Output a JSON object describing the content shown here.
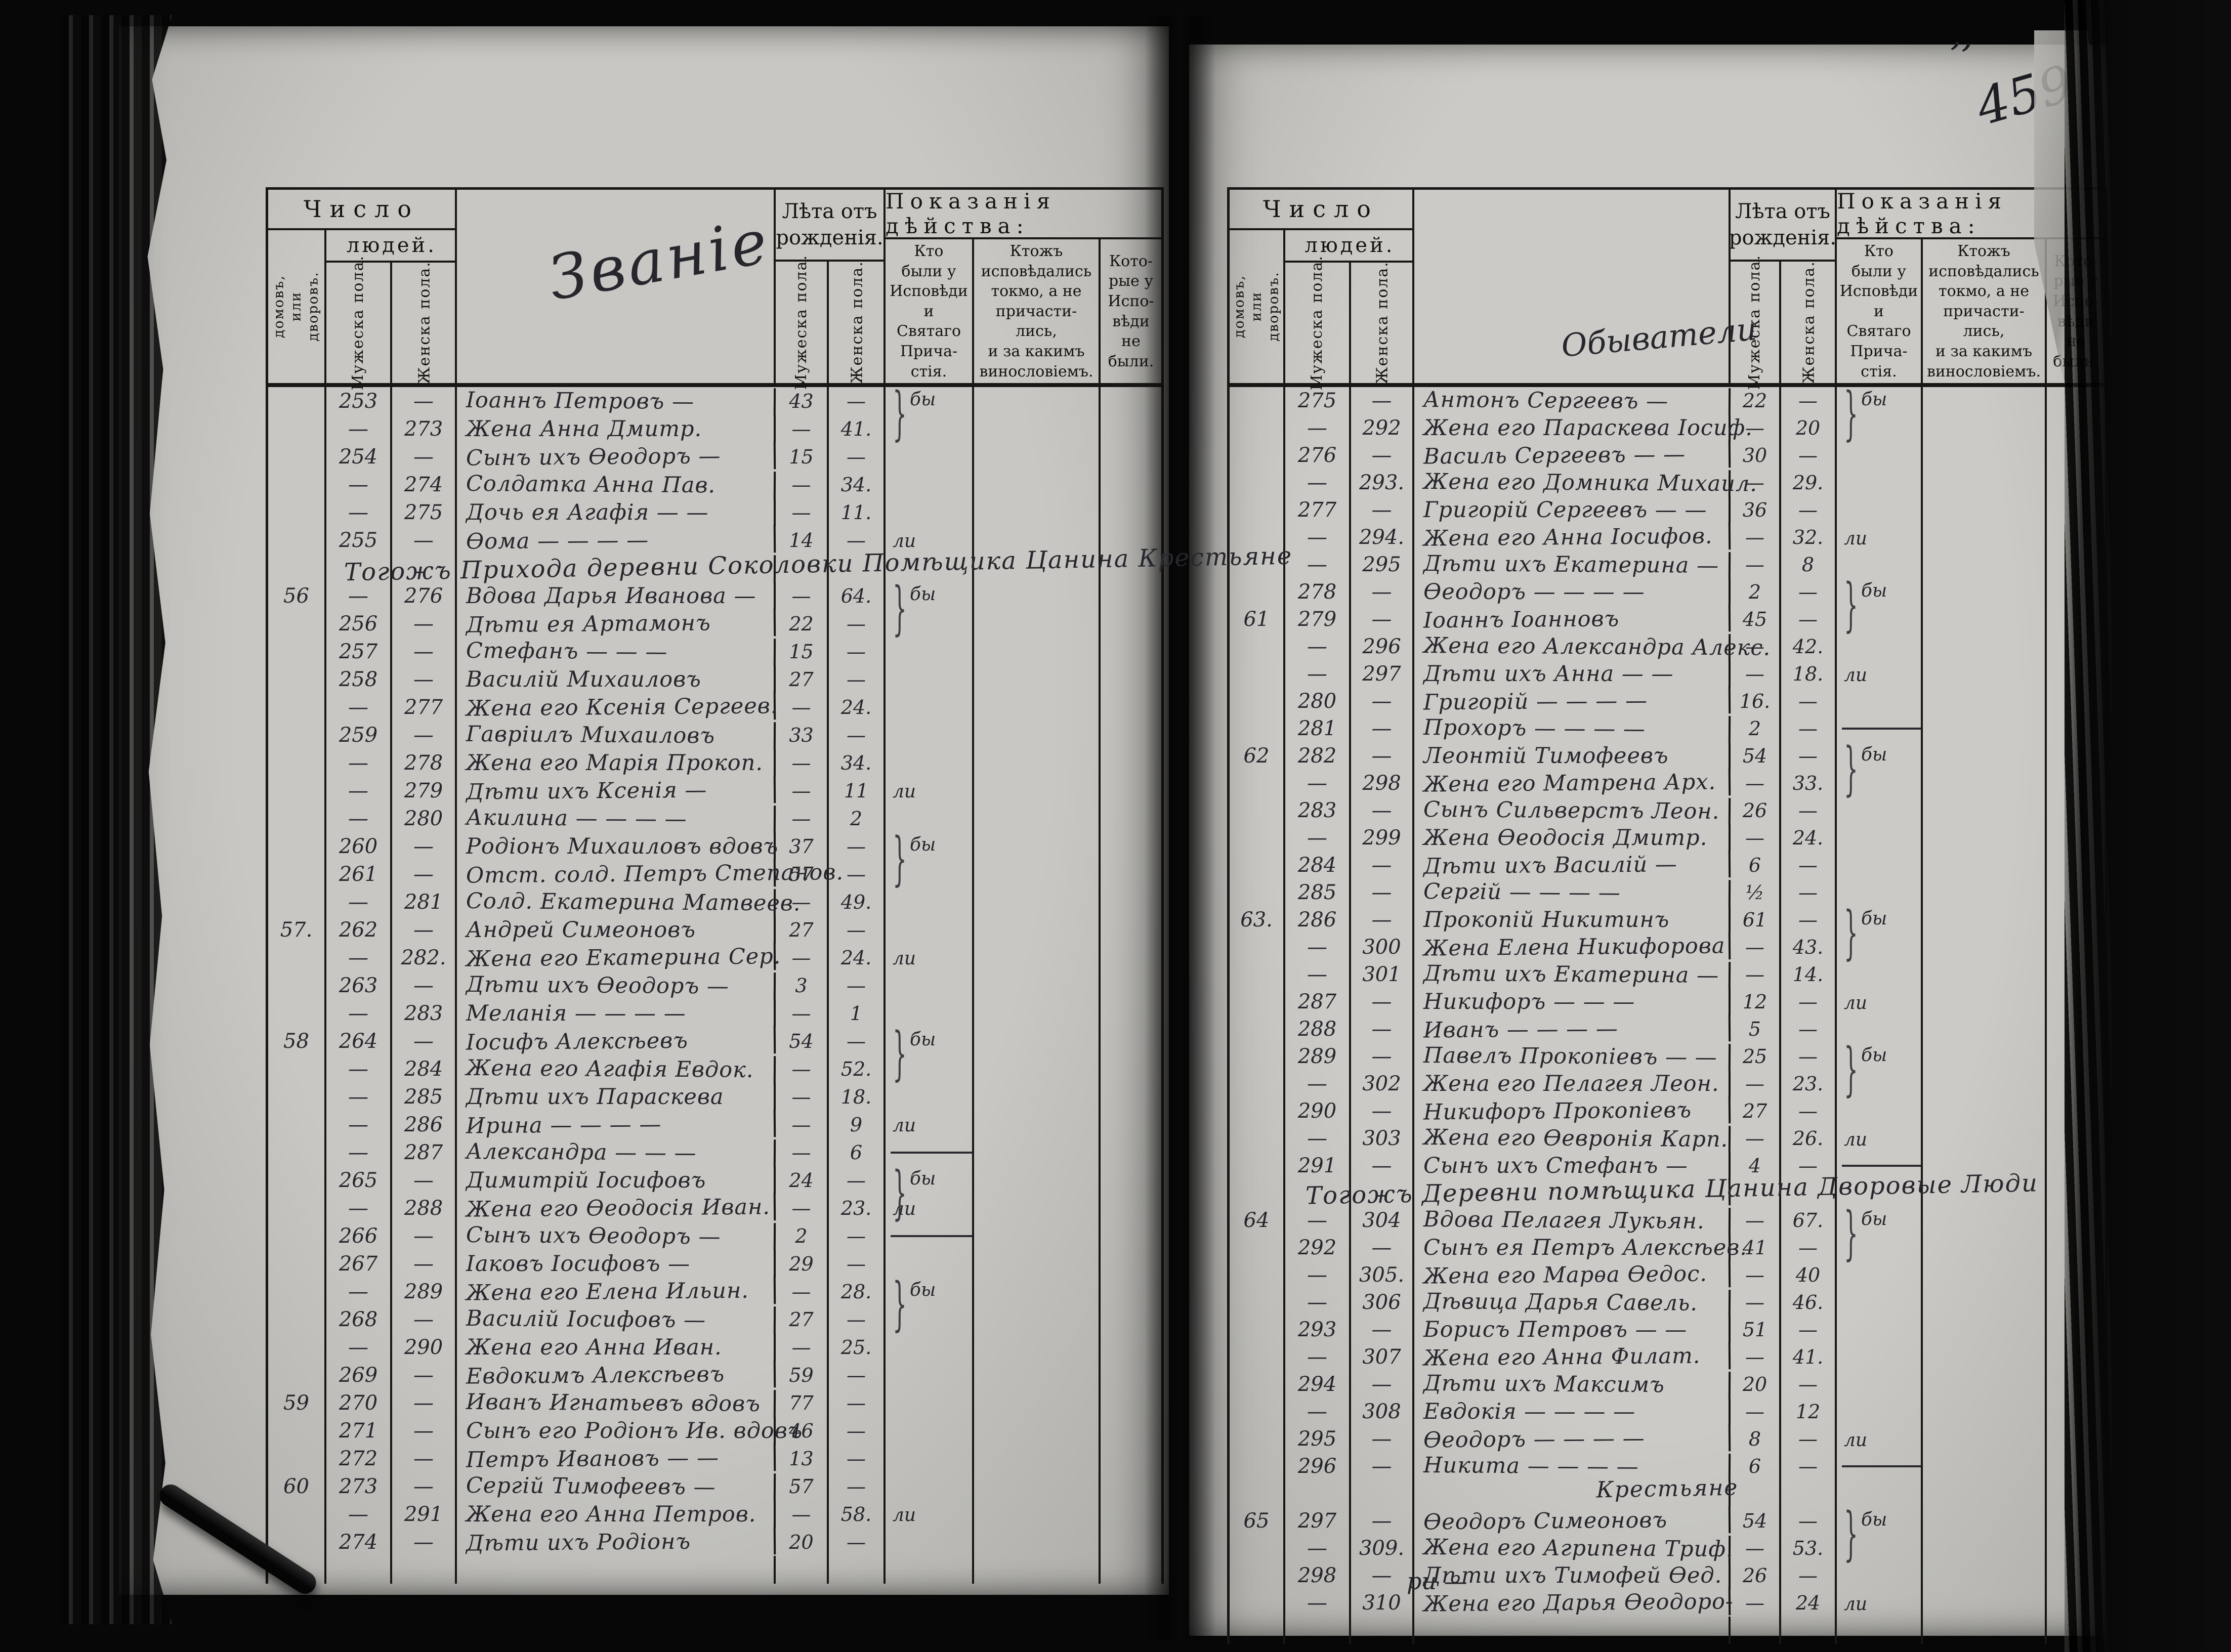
{
  "page_number": "459",
  "corner_marks": "’’",
  "header": {
    "chislo": "Число",
    "lyudey": "людей.",
    "domov": "домовъ,\nили\nдворовъ.",
    "muzheska": "Мужеска пола.",
    "zhenska": "Женска пола.",
    "leta": "Лѣта отъ\nрожденія.",
    "pokazaniya": "Показанія дѣйства:",
    "col_confessed": "Кто\nбыли у\nИсповѣди\nи\nСвятаго\nПрича-\nстія.",
    "col_confessed_only": "Ктожъ\nисповѣдались\nтокмо, а не\nпричасти-\nлись,\nи за какимъ\nвинословіемъ.",
    "col_absent": "Кото-\nрые у\nИспо-\nвѣди\nне\nбыли."
  },
  "ink_color": "#27262c",
  "page_color": "#c8c7c3",
  "left_page": {
    "names_heading": "Званіе",
    "rows": [
      {
        "mn": "253",
        "fn": "—",
        "name": "Іоаннъ Петровъ —",
        "ma": "43",
        "fa": "—",
        "mark": "бы"
      },
      {
        "mn": "—",
        "fn": "273",
        "name": "Жена Анна Дмитр.",
        "ma": "—",
        "fa": "41."
      },
      {
        "mn": "254",
        "fn": "—",
        "name": "Сынъ ихъ Ѳеодоръ —",
        "ma": "15",
        "fa": "—"
      },
      {
        "mn": "—",
        "fn": "274",
        "name": "Солдатка Анна Пав.",
        "ma": "—",
        "fa": "34."
      },
      {
        "mn": "—",
        "fn": "275",
        "name": "Дочь ея Агафія — —",
        "ma": "—",
        "fa": "11."
      },
      {
        "mn": "255",
        "fn": "—",
        "name": "Ѳома — — — —",
        "ma": "14",
        "fa": "—",
        "mark": "ли"
      },
      {
        "section": "Тогожъ Прихода деревни Соколовки Помѣщика Цанина Крестьяне"
      },
      {
        "h": "56",
        "mn": "—",
        "fn": "276",
        "name": "Вдова Дарья Иванова —",
        "ma": "—",
        "fa": "64.",
        "mark": "бы"
      },
      {
        "mn": "256",
        "fn": "—",
        "name": "Дѣти ея Артамонъ",
        "ma": "22",
        "fa": "—"
      },
      {
        "mn": "257",
        "fn": "—",
        "name": "Стефанъ — — —",
        "ma": "15",
        "fa": "—"
      },
      {
        "mn": "258",
        "fn": "—",
        "name": "Василій Михаиловъ",
        "ma": "27",
        "fa": "—"
      },
      {
        "mn": "—",
        "fn": "277",
        "name": "Жена его Ксенія Сергеев.",
        "ma": "—",
        "fa": "24."
      },
      {
        "mn": "259",
        "fn": "—",
        "name": "Гавріилъ Михаиловъ",
        "ma": "33",
        "fa": "—"
      },
      {
        "mn": "—",
        "fn": "278",
        "name": "Жена его Марія Прокоп.",
        "ma": "—",
        "fa": "34."
      },
      {
        "mn": "—",
        "fn": "279",
        "name": "Дѣти ихъ Ксенія —",
        "ma": "—",
        "fa": "11",
        "mark": "ли"
      },
      {
        "mn": "—",
        "fn": "280",
        "name": "Акилина — — — —",
        "ma": "—",
        "fa": "2"
      },
      {
        "mn": "260",
        "fn": "—",
        "name": "Родіонъ Михаиловъ вдовъ",
        "ma": "37",
        "fa": "—",
        "mark": "бы"
      },
      {
        "mn": "261",
        "fn": "—",
        "name": "Отст. солд. Петръ Степанов.",
        "ma": "57",
        "fa": "—"
      },
      {
        "mn": "—",
        "fn": "281",
        "name": "Солд. Екатерина Матвеев.",
        "ma": "—",
        "fa": "49."
      },
      {
        "h": "57.",
        "mn": "262",
        "fn": "—",
        "name": "Андрей Симеоновъ",
        "ma": "27",
        "fa": "—"
      },
      {
        "mn": "—",
        "fn": "282.",
        "name": "Жена его Екатерина Сер.",
        "ma": "—",
        "fa": "24.",
        "mark": "ли"
      },
      {
        "mn": "263",
        "fn": "—",
        "name": "Дѣти ихъ Ѳеодоръ —",
        "ma": "3",
        "fa": "—"
      },
      {
        "mn": "—",
        "fn": "283",
        "name": "Меланія — — — —",
        "ma": "—",
        "fa": "1"
      },
      {
        "h": "58",
        "mn": "264",
        "fn": "—",
        "name": "Іосифъ Алексѣевъ",
        "ma": "54",
        "fa": "—",
        "mark": "бы"
      },
      {
        "mn": "—",
        "fn": "284",
        "name": "Жена его Агафія Евдок.",
        "ma": "—",
        "fa": "52."
      },
      {
        "mn": "—",
        "fn": "285",
        "name": "Дѣти ихъ Параскева",
        "ma": "—",
        "fa": "18."
      },
      {
        "mn": "—",
        "fn": "286",
        "name": "Ирина — — — —",
        "ma": "—",
        "fa": "9",
        "mark": "ли"
      },
      {
        "mn": "—",
        "fn": "287",
        "name": "Александра — — —",
        "ma": "—",
        "fa": "6",
        "dash": true
      },
      {
        "mn": "265",
        "fn": "—",
        "name": "Димитрій Іосифовъ",
        "ma": "24",
        "fa": "—",
        "mark": "бы"
      },
      {
        "mn": "—",
        "fn": "288",
        "name": "Жена его Ѳеодосія Иван.",
        "ma": "—",
        "fa": "23.",
        "mark": "ли"
      },
      {
        "mn": "266",
        "fn": "—",
        "name": "Сынъ ихъ Ѳеодоръ —",
        "ma": "2",
        "fa": "—",
        "dash": true
      },
      {
        "mn": "267",
        "fn": "—",
        "name": "Іаковъ Іосифовъ —",
        "ma": "29",
        "fa": "—"
      },
      {
        "mn": "—",
        "fn": "289",
        "name": "Жена его Елена Ильин.",
        "ma": "—",
        "fa": "28.",
        "mark": "бы"
      },
      {
        "mn": "268",
        "fn": "—",
        "name": "Василій Іосифовъ —",
        "ma": "27",
        "fa": "—"
      },
      {
        "mn": "—",
        "fn": "290",
        "name": "Жена его Анна Иван.",
        "ma": "—",
        "fa": "25."
      },
      {
        "mn": "269",
        "fn": "—",
        "name": "Евдокимъ Алексѣевъ",
        "ma": "59",
        "fa": "—"
      },
      {
        "h": "59",
        "mn": "270",
        "fn": "—",
        "name": "Иванъ Игнатьевъ вдовъ",
        "ma": "77",
        "fa": "—"
      },
      {
        "mn": "271",
        "fn": "—",
        "name": "Сынъ его Родіонъ Ив. вдовъ",
        "ma": "46",
        "fa": "—"
      },
      {
        "mn": "272",
        "fn": "—",
        "name": "Петръ Ивановъ — —",
        "ma": "13",
        "fa": "—"
      },
      {
        "h": "60",
        "mn": "273",
        "fn": "—",
        "name": "Сергій Тимофеевъ —",
        "ma": "57",
        "fa": "—"
      },
      {
        "mn": "—",
        "fn": "291",
        "name": "Жена его Анна Петров.",
        "ma": "—",
        "fa": "58.",
        "mark": "ли"
      },
      {
        "mn": "274",
        "fn": "—",
        "name": "Дѣти ихъ Родіонъ",
        "ma": "20",
        "fa": "—"
      }
    ]
  },
  "right_page": {
    "names_heading": "Обыватели",
    "trailing_text": "ри —",
    "rows": [
      {
        "mn": "275",
        "fn": "—",
        "name": "Антонъ Сергеевъ —",
        "ma": "22",
        "fa": "—",
        "mark": "бы"
      },
      {
        "mn": "—",
        "fn": "292",
        "name": "Жена его Параскева Іосиф.",
        "ma": "—",
        "fa": "20"
      },
      {
        "mn": "276",
        "fn": "—",
        "name": "Василь Сергеевъ — —",
        "ma": "30",
        "fa": "—"
      },
      {
        "mn": "—",
        "fn": "293.",
        "name": "Жена его Домника Михаил.",
        "ma": "—",
        "fa": "29."
      },
      {
        "mn": "277",
        "fn": "—",
        "name": "Григорій Сергеевъ — —",
        "ma": "36",
        "fa": "—"
      },
      {
        "mn": "—",
        "fn": "294.",
        "name": "Жена его Анна Іосифов.",
        "ma": "—",
        "fa": "32.",
        "mark": "ли"
      },
      {
        "mn": "—",
        "fn": "295",
        "name": "Дѣти ихъ Екатерина —",
        "ma": "—",
        "fa": "8"
      },
      {
        "mn": "278",
        "fn": "—",
        "name": "Ѳеодоръ — — — —",
        "ma": "2",
        "fa": "—",
        "mark": "бы"
      },
      {
        "h": "61",
        "mn": "279",
        "fn": "—",
        "name": "Іоаннъ Іоанновъ",
        "ma": "45",
        "fa": "—"
      },
      {
        "mn": "—",
        "fn": "296",
        "name": "Жена его Александра Алекс.",
        "ma": "—",
        "fa": "42."
      },
      {
        "mn": "—",
        "fn": "297",
        "name": "Дѣти ихъ Анна — —",
        "ma": "—",
        "fa": "18.",
        "mark": "ли"
      },
      {
        "mn": "280",
        "fn": "—",
        "name": "Григорій — — — —",
        "ma": "16.",
        "fa": "—"
      },
      {
        "mn": "281",
        "fn": "—",
        "name": "Прохоръ — — — —",
        "ma": "2",
        "fa": "—",
        "dash": true
      },
      {
        "h": "62",
        "mn": "282",
        "fn": "—",
        "name": "Леонтій Тимофеевъ",
        "ma": "54",
        "fa": "—",
        "mark": "бы"
      },
      {
        "mn": "—",
        "fn": "298",
        "name": "Жена его Матрена Арх.",
        "ma": "—",
        "fa": "33."
      },
      {
        "mn": "283",
        "fn": "—",
        "name": "Сынъ Сильверстъ Леон.",
        "ma": "26",
        "fa": "—"
      },
      {
        "mn": "—",
        "fn": "299",
        "name": "Жена Ѳеодосія Дмитр.",
        "ma": "—",
        "fa": "24."
      },
      {
        "mn": "284",
        "fn": "—",
        "name": "Дѣти ихъ Василій —",
        "ma": "6",
        "fa": "—"
      },
      {
        "mn": "285",
        "fn": "—",
        "name": "Сергій — — — —",
        "ma": "½",
        "fa": "—"
      },
      {
        "h": "63.",
        "mn": "286",
        "fn": "—",
        "name": "Прокопій Никитинъ",
        "ma": "61",
        "fa": "—",
        "mark": "бы"
      },
      {
        "mn": "—",
        "fn": "300",
        "name": "Жена Елена Никифорова",
        "ma": "—",
        "fa": "43."
      },
      {
        "mn": "—",
        "fn": "301",
        "name": "Дѣти ихъ Екатерина —",
        "ma": "—",
        "fa": "14."
      },
      {
        "mn": "287",
        "fn": "—",
        "name": "Никифоръ — — —",
        "ma": "12",
        "fa": "—",
        "mark": "ли"
      },
      {
        "mn": "288",
        "fn": "—",
        "name": "Иванъ — — — —",
        "ma": "5",
        "fa": "—"
      },
      {
        "mn": "289",
        "fn": "—",
        "name": "Павелъ Прокопіевъ — —",
        "ma": "25",
        "fa": "—",
        "mark": "бы"
      },
      {
        "mn": "—",
        "fn": "302",
        "name": "Жена его Пелагея Леон.",
        "ma": "—",
        "fa": "23."
      },
      {
        "mn": "290",
        "fn": "—",
        "name": "Никифоръ Прокопіевъ",
        "ma": "27",
        "fa": "—"
      },
      {
        "mn": "—",
        "fn": "303",
        "name": "Жена его Ѳевронія Карп.",
        "ma": "—",
        "fa": "26.",
        "mark": "ли"
      },
      {
        "mn": "291",
        "fn": "—",
        "name": "Сынъ ихъ Стефанъ —",
        "ma": "4",
        "fa": "—",
        "dash": true
      },
      {
        "section": "Тогожъ Деревни помѣщика Цанина Дворовые Люди"
      },
      {
        "h": "64",
        "mn": "—",
        "fn": "304",
        "name": "Вдова Пелагея Лукьян.",
        "ma": "—",
        "fa": "67.",
        "mark": "бы"
      },
      {
        "mn": "292",
        "fn": "—",
        "name": "Сынъ ея Петръ Алексѣев.",
        "ma": "41",
        "fa": "—"
      },
      {
        "mn": "—",
        "fn": "305.",
        "name": "Жена его Марѳа Ѳедос.",
        "ma": "—",
        "fa": "40"
      },
      {
        "mn": "—",
        "fn": "306",
        "name": "Дѣвица Дарья Савель.",
        "ma": "—",
        "fa": "46."
      },
      {
        "mn": "293",
        "fn": "—",
        "name": "Борисъ Петровъ — —",
        "ma": "51",
        "fa": "—"
      },
      {
        "mn": "—",
        "fn": "307",
        "name": "Жена его Анна Филат.",
        "ma": "—",
        "fa": "41."
      },
      {
        "mn": "294",
        "fn": "—",
        "name": "Дѣти ихъ Максимъ",
        "ma": "20",
        "fa": "—"
      },
      {
        "mn": "—",
        "fn": "308",
        "name": "Евдокія — — — —",
        "ma": "—",
        "fa": "12"
      },
      {
        "mn": "295",
        "fn": "—",
        "name": "Ѳеодоръ — — — —",
        "ma": "8",
        "fa": "—",
        "mark": "ли"
      },
      {
        "mn": "296",
        "fn": "—",
        "name": "Никита — — — —",
        "ma": "6",
        "fa": "—",
        "dash": true
      },
      {
        "section": "Крестьяне",
        "center": true
      },
      {
        "h": "65",
        "mn": "297",
        "fn": "—",
        "name": "Ѳеодоръ Симеоновъ",
        "ma": "54",
        "fa": "—",
        "mark": "бы"
      },
      {
        "mn": "—",
        "fn": "309.",
        "name": "Жена его Агрипена Триф.",
        "ma": "—",
        "fa": "53."
      },
      {
        "mn": "298",
        "fn": "—",
        "name": "Дѣти ихъ Тимофей Ѳед.",
        "ma": "26",
        "fa": "—"
      },
      {
        "mn": "—",
        "fn": "310",
        "name": "Жена его Дарья Ѳеодоро-",
        "ma": "—",
        "fa": "24",
        "mark": "ли"
      }
    ]
  }
}
